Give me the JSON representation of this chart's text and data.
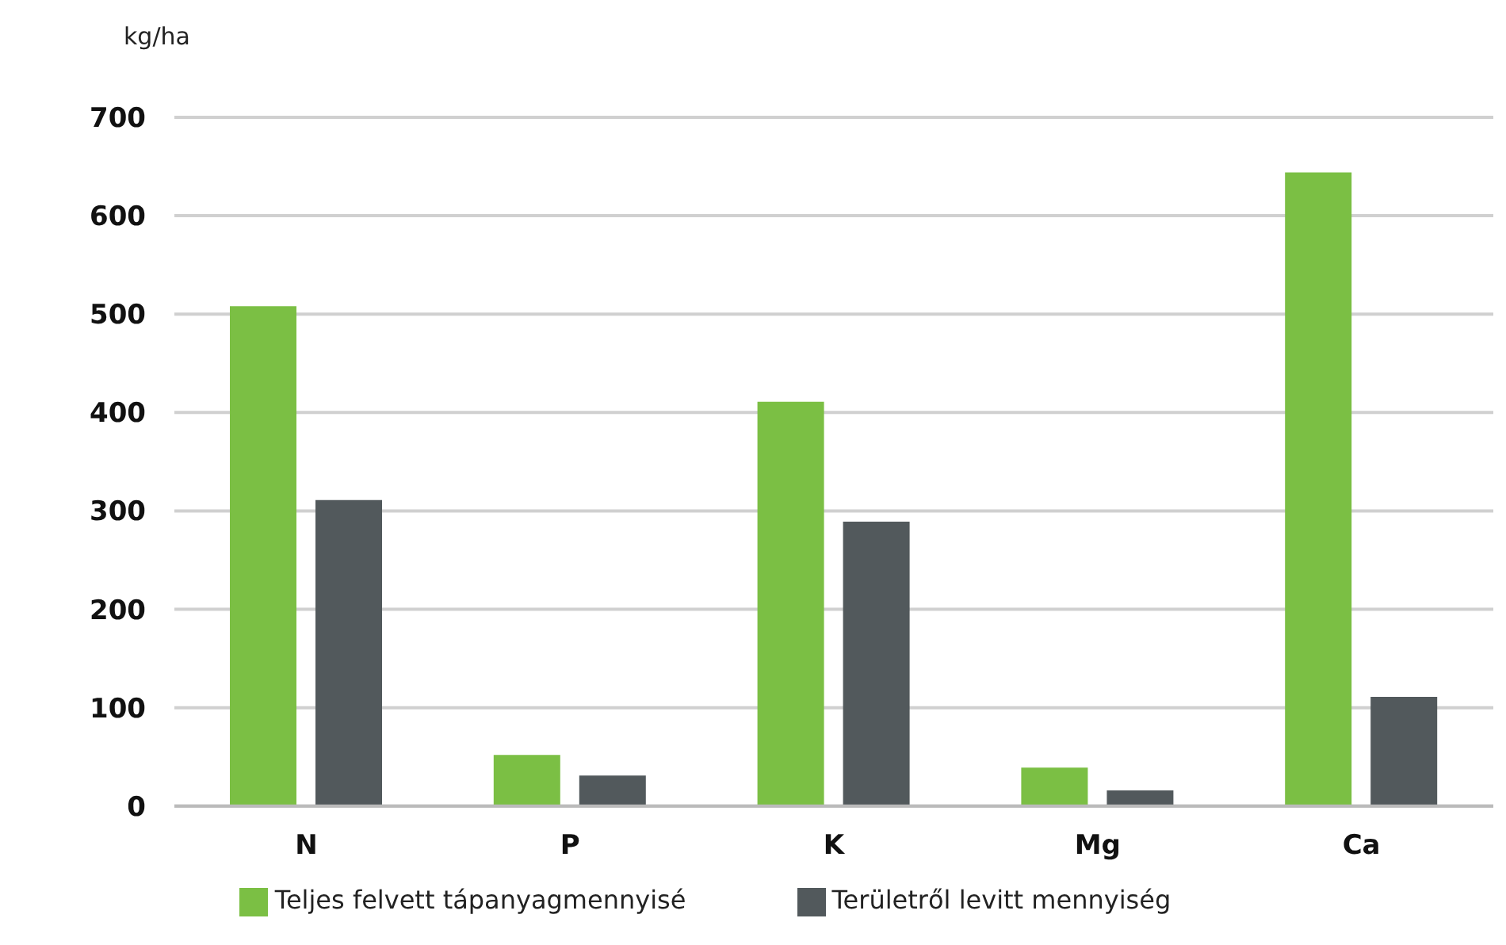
{
  "chart_data": {
    "type": "bar",
    "ylabel": "kg/ha",
    "categories": [
      "N",
      "P",
      "K",
      "Mg",
      "Ca"
    ],
    "series": [
      {
        "name": "Teljes felvett tápanyagmennyisé",
        "color": "#7bbf44",
        "values": [
          508,
          52,
          411,
          39,
          644
        ]
      },
      {
        "name": "Területről levitt mennyiség",
        "color": "#52595c",
        "values": [
          311,
          31,
          289,
          16,
          111
        ]
      }
    ],
    "ylim": [
      0,
      700
    ],
    "yticks": [
      0,
      100,
      200,
      300,
      400,
      500,
      600,
      700
    ],
    "grid": "y",
    "legend": "bottom"
  }
}
